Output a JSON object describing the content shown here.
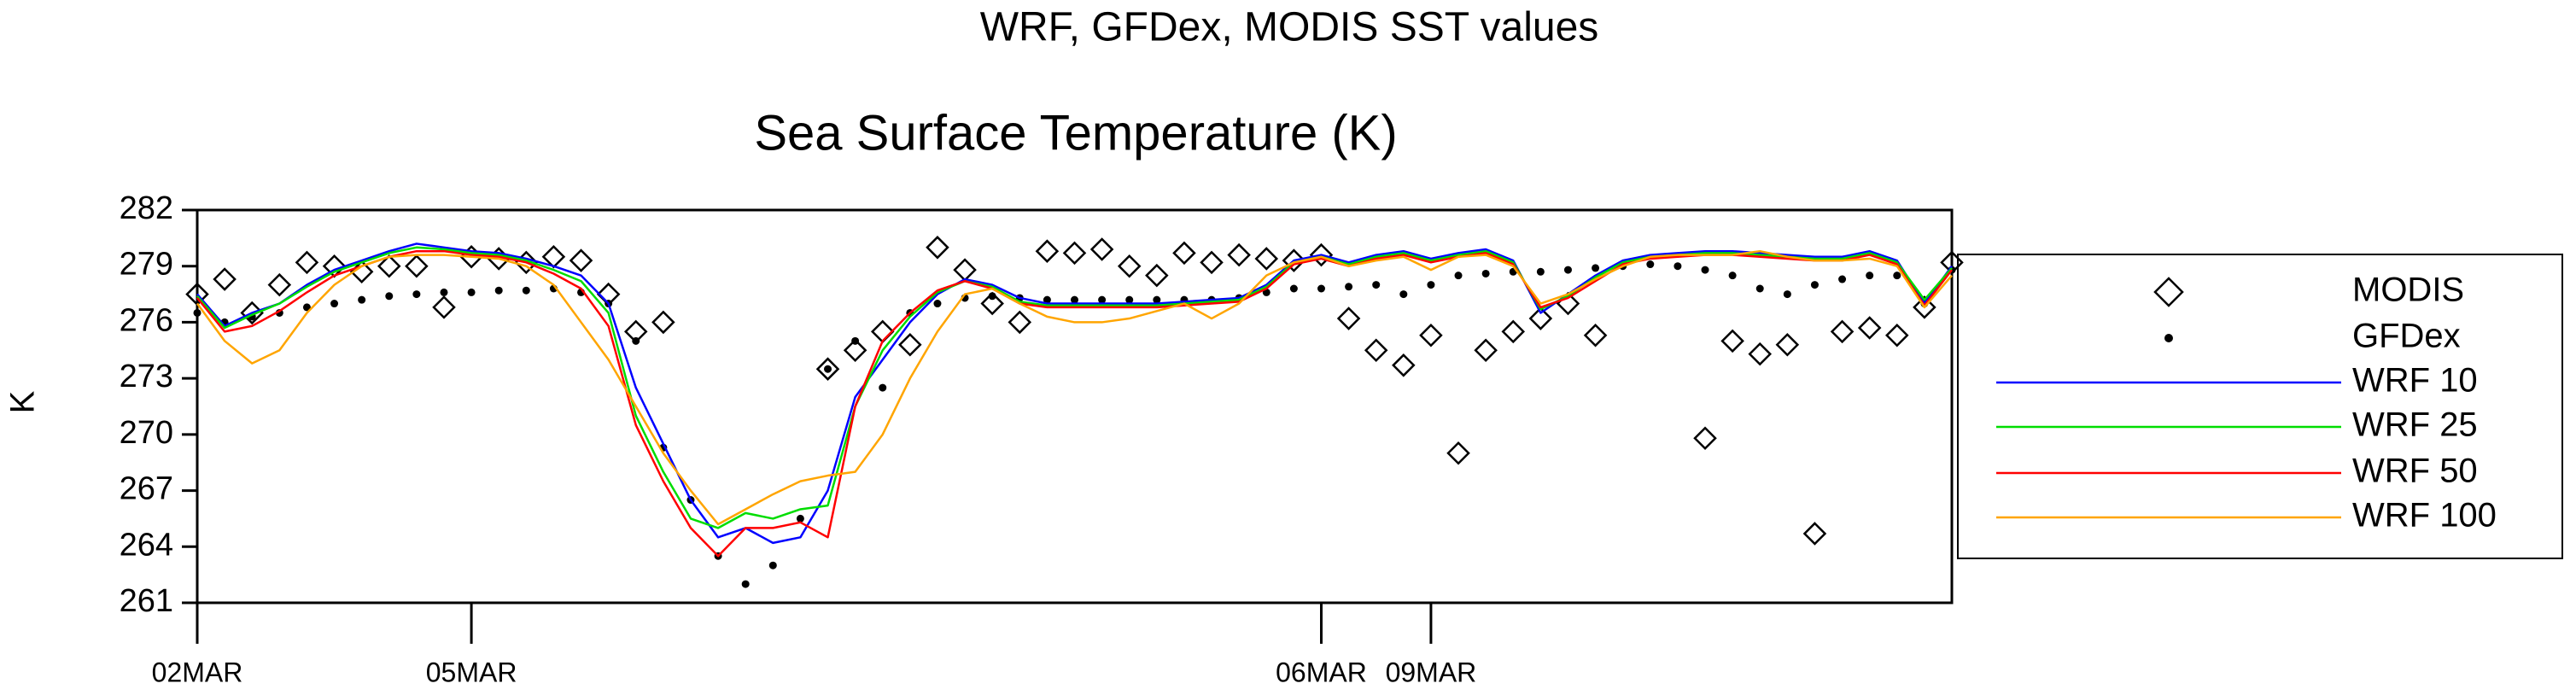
{
  "chart_data": {
    "type": "line",
    "title": "WRF, GFDex, MODIS SST values",
    "subtitle": "Sea Surface Temperature (K)",
    "y_label": "K",
    "x": [
      0,
      1,
      2,
      3,
      4,
      5,
      6,
      7,
      8,
      9,
      10,
      11,
      12,
      13,
      14,
      15,
      16,
      17,
      18,
      19,
      20,
      21,
      22,
      23,
      24,
      25,
      26,
      27,
      28,
      29,
      30,
      31,
      32,
      33,
      34,
      35,
      36,
      37,
      38,
      39,
      40,
      41,
      42,
      43,
      44,
      45,
      46,
      47,
      48,
      49,
      50,
      51,
      52,
      53,
      54,
      55,
      56,
      57,
      58,
      59,
      60,
      61,
      62,
      63,
      64
    ],
    "xlim": [
      0,
      64
    ],
    "xticks": [
      {
        "value": 0,
        "label": "02MAR"
      },
      {
        "value": 10,
        "label": "05MAR"
      },
      {
        "value": 41,
        "label": "06MAR"
      },
      {
        "value": 45,
        "label": "09MAR"
      }
    ],
    "ylim": [
      261,
      282
    ],
    "yticks": [
      261,
      264,
      267,
      270,
      273,
      276,
      279,
      282
    ],
    "legend": "right",
    "series": [
      {
        "name": "MODIS",
        "color": "#000000",
        "marker": "diamond",
        "values": [
          277.5,
          278.3,
          276.5,
          278,
          279.2,
          279,
          278.7,
          279,
          279,
          276.8,
          279.5,
          279.4,
          279.2,
          279.5,
          279.3,
          277.5,
          275.5,
          276,
          null,
          null,
          null,
          null,
          null,
          273.5,
          274.5,
          275.5,
          274.8,
          280,
          278.8,
          277,
          276,
          279.8,
          279.7,
          279.9,
          279,
          278.5,
          279.7,
          279.2,
          279.6,
          279.4,
          279.3,
          279.6,
          276.2,
          274.5,
          273.7,
          275.3,
          269,
          274.5,
          275.5,
          276.2,
          277,
          275.3,
          null,
          null,
          null,
          269.8,
          275,
          274.3,
          274.8,
          264.7,
          275.5,
          275.7,
          275.3,
          276.8,
          279.2
        ]
      },
      {
        "name": "GFDex",
        "color": "#000000",
        "marker": "dot",
        "values": [
          276.5,
          276,
          276.3,
          276.5,
          276.8,
          277,
          277.2,
          277.4,
          277.5,
          277.6,
          277.6,
          277.7,
          277.7,
          277.8,
          277.6,
          277,
          275,
          269.3,
          266.5,
          263.5,
          262,
          263,
          265.5,
          273.5,
          275,
          272.5,
          276.5,
          277,
          277.3,
          277.4,
          277.3,
          277.2,
          277.2,
          277.2,
          277.2,
          277.2,
          277.2,
          277.2,
          277.3,
          277.6,
          277.8,
          277.8,
          277.9,
          278,
          277.5,
          278,
          278.5,
          278.6,
          278.7,
          278.7,
          278.8,
          278.9,
          279,
          279.1,
          279,
          278.8,
          278.5,
          277.8,
          277.5,
          278,
          278.3,
          278.5,
          278.5,
          277,
          278.8
        ]
      },
      {
        "name": "WRF 10",
        "color": "#0000ff",
        "marker": "none",
        "values": [
          277.5,
          275.8,
          276.5,
          277,
          278,
          278.8,
          279.3,
          279.8,
          280.2,
          280,
          279.8,
          279.7,
          279.4,
          279,
          278.5,
          277,
          272.5,
          269.5,
          266.5,
          264.5,
          265,
          264.2,
          264.5,
          267,
          272,
          274,
          276,
          277.5,
          278.3,
          278,
          277.3,
          277,
          277,
          277,
          277,
          277,
          277.1,
          277.2,
          277.3,
          278,
          279.3,
          279.6,
          279.2,
          279.6,
          279.8,
          279.4,
          279.7,
          279.9,
          279.3,
          276.5,
          277.5,
          278.5,
          279.3,
          279.6,
          279.7,
          279.8,
          279.8,
          279.7,
          279.6,
          279.5,
          279.5,
          279.8,
          279.3,
          277,
          279
        ]
      },
      {
        "name": "WRF 25",
        "color": "#00dd00",
        "marker": "none",
        "values": [
          277.4,
          275.7,
          276.4,
          277,
          277.9,
          278.7,
          279.2,
          279.7,
          280,
          279.9,
          279.7,
          279.6,
          279.3,
          278.8,
          278.2,
          276.5,
          271,
          268,
          265.5,
          265,
          265.8,
          265.5,
          266,
          266.2,
          271.5,
          274.5,
          276.3,
          277.6,
          278.2,
          277.9,
          277.1,
          276.9,
          276.9,
          276.9,
          276.9,
          276.9,
          277,
          277.1,
          277.2,
          277.9,
          279.2,
          279.5,
          279.1,
          279.5,
          279.7,
          279.3,
          279.6,
          279.8,
          279.2,
          276.7,
          277.4,
          278.4,
          279.2,
          279.5,
          279.6,
          279.7,
          279.7,
          279.6,
          279.5,
          279.4,
          279.4,
          279.7,
          279.2,
          277.2,
          278.9
        ]
      },
      {
        "name": "WRF 50",
        "color": "#ff0000",
        "marker": "none",
        "values": [
          277.3,
          275.5,
          275.8,
          276.6,
          277.6,
          278.5,
          279,
          279.5,
          279.8,
          279.8,
          279.6,
          279.5,
          279.2,
          278.6,
          277.8,
          275.8,
          270.5,
          267.5,
          265,
          263.5,
          265,
          265,
          265.3,
          264.5,
          271.5,
          275,
          276.5,
          277.7,
          278.2,
          277.8,
          277,
          276.8,
          276.8,
          276.8,
          276.8,
          276.8,
          276.9,
          277,
          277.1,
          277.8,
          279.1,
          279.4,
          279,
          279.4,
          279.6,
          279.2,
          279.5,
          279.7,
          279.1,
          276.8,
          277.3,
          278.2,
          279.1,
          279.4,
          279.5,
          279.6,
          279.6,
          279.5,
          279.4,
          279.3,
          279.3,
          279.6,
          279.1,
          276.9,
          278.8
        ]
      },
      {
        "name": "WRF 100",
        "color": "#ffa500",
        "marker": "none",
        "values": [
          277,
          275,
          273.8,
          274.5,
          276.5,
          278,
          279,
          279.5,
          279.6,
          279.6,
          279.5,
          279.4,
          279,
          278,
          276,
          274,
          271.5,
          269,
          267,
          265.2,
          266,
          266.8,
          267.5,
          267.8,
          268,
          270,
          273,
          275.5,
          277.5,
          277.8,
          277,
          276.3,
          276,
          276,
          276.2,
          276.6,
          277,
          276.2,
          277,
          278.5,
          279.2,
          279.5,
          279,
          279.3,
          279.5,
          278.8,
          279.5,
          279.6,
          279,
          277,
          277.5,
          278.3,
          279,
          279.5,
          279.6,
          279.6,
          279.6,
          279.8,
          279.5,
          279.3,
          279.3,
          279.4,
          279,
          276.8,
          278.5
        ]
      }
    ]
  }
}
